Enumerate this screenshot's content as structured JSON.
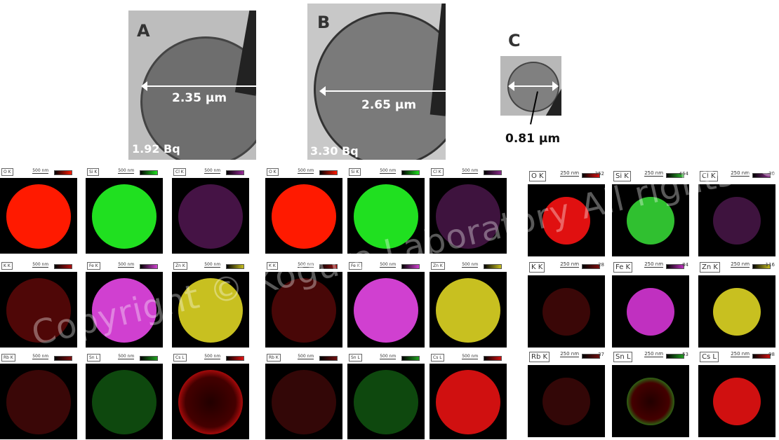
{
  "particles": [
    {
      "label": "A",
      "diameter": "2.35 µm",
      "activity": "1.92 Bq"
    },
    {
      "label": "B",
      "diameter": "2.65 µm",
      "activity": "3.30 Bq"
    },
    {
      "label": "C",
      "diameter": "0.81 µm",
      "activity": ""
    }
  ],
  "watermark": "Copyright © Kogure Laboratory All rights reserved",
  "maps": [
    {
      "particle": "A",
      "tiles": [
        {
          "element": "O K",
          "scale": "500 nm",
          "color": "#ff1a00",
          "style": "solid"
        },
        {
          "element": "Si K",
          "scale": "500 nm",
          "color": "#20e020",
          "style": "solid"
        },
        {
          "element": "Cl K",
          "scale": "500 nm",
          "color": "#9a2a9a",
          "style": "dim"
        },
        {
          "element": "K K",
          "scale": "500 nm",
          "color": "#b01010",
          "style": "dim"
        },
        {
          "element": "Fe K",
          "scale": "500 nm",
          "color": "#d040d0",
          "style": "solid"
        },
        {
          "element": "Zn K",
          "scale": "500 nm",
          "color": "#c8c020",
          "style": "solid"
        },
        {
          "element": "Rb K",
          "scale": "500 nm",
          "color": "#801010",
          "style": "dim"
        },
        {
          "element": "Sn L",
          "scale": "500 nm",
          "color": "#20a020",
          "style": "dim"
        },
        {
          "element": "Cs L",
          "scale": "500 nm",
          "color": "#e01010",
          "style": "ring"
        }
      ]
    },
    {
      "particle": "B",
      "tiles": [
        {
          "element": "O K",
          "scale": "500 nm",
          "color": "#ff1a00",
          "style": "solid"
        },
        {
          "element": "Si K",
          "scale": "500 nm",
          "color": "#20e020",
          "style": "solid"
        },
        {
          "element": "Cl K",
          "scale": "500 nm",
          "color": "#8a2a8a",
          "style": "dim"
        },
        {
          "element": "K K",
          "scale": "500 nm",
          "color": "#a01010",
          "style": "dim"
        },
        {
          "element": "Fe K",
          "scale": "500 nm",
          "color": "#d040d0",
          "style": "solid"
        },
        {
          "element": "Zn K",
          "scale": "500 nm",
          "color": "#c8c020",
          "style": "solid"
        },
        {
          "element": "Rb K",
          "scale": "500 nm",
          "color": "#701010",
          "style": "dim"
        },
        {
          "element": "Sn L",
          "scale": "500 nm",
          "color": "#20a020",
          "style": "dim"
        },
        {
          "element": "Cs L",
          "scale": "500 nm",
          "color": "#d01010",
          "style": "solid"
        }
      ]
    },
    {
      "particle": "C",
      "tiles": [
        {
          "element": "O K",
          "scale": "250 nm",
          "max": "352",
          "color": "#e01010",
          "style": "solid"
        },
        {
          "element": "Si K",
          "scale": "250 nm",
          "max": "454",
          "color": "#30c030",
          "style": "solid"
        },
        {
          "element": "Cl K",
          "scale": "250 nm",
          "max": "30",
          "color": "#8a2a8a",
          "style": "dim"
        },
        {
          "element": "K K",
          "scale": "250 nm",
          "max": "28",
          "color": "#801010",
          "style": "dim"
        },
        {
          "element": "Fe K",
          "scale": "250 nm",
          "max": "84",
          "color": "#c030c0",
          "style": "solid"
        },
        {
          "element": "Zn K",
          "scale": "250 nm",
          "max": "116",
          "color": "#c8c020",
          "style": "solid"
        },
        {
          "element": "Rb K",
          "scale": "250 nm",
          "max": "37",
          "color": "#701010",
          "style": "dim"
        },
        {
          "element": "Sn L",
          "scale": "250 nm",
          "max": "53",
          "color": "#20a020",
          "style": "ring"
        },
        {
          "element": "Cs L",
          "scale": "250 nm",
          "max": "98",
          "color": "#d01010",
          "style": "solid"
        }
      ]
    }
  ]
}
